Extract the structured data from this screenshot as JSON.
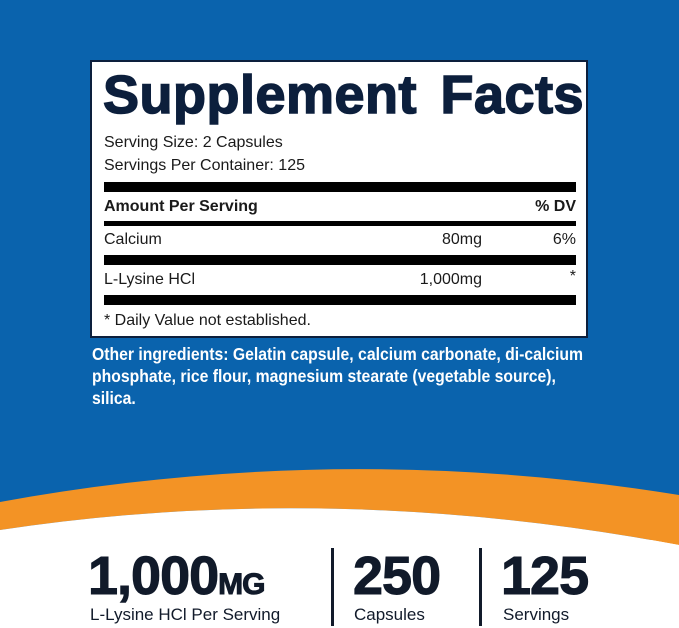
{
  "colors": {
    "blue": "#0a63ad",
    "orange": "#f39325",
    "navy": "#0c1f3c"
  },
  "facts": {
    "title": "Supplement Facts",
    "serving_size": "Serving Size: 2 Capsules",
    "servings_per_container": "Servings Per Container: 125",
    "header_amount": "Amount Per Serving",
    "header_dv": "% DV",
    "rows": [
      {
        "name": "Calcium",
        "amount": "80mg",
        "dv": "6%"
      },
      {
        "name": "L-Lysine HCl",
        "amount": "1,000mg",
        "dv": "*"
      }
    ],
    "footnote": "* Daily Value not established."
  },
  "other_ingredients": "Other ingredients: Gelatin capsule, calcium carbonate, di-calcium phosphate, rice flour, magnesium stearate (vegetable source), silica.",
  "stats": [
    {
      "value": "1,000",
      "unit": "MG",
      "label": "L-Lysine HCl Per Serving"
    },
    {
      "value": "250",
      "label": "Capsules"
    },
    {
      "value": "125",
      "label": "Servings"
    }
  ]
}
